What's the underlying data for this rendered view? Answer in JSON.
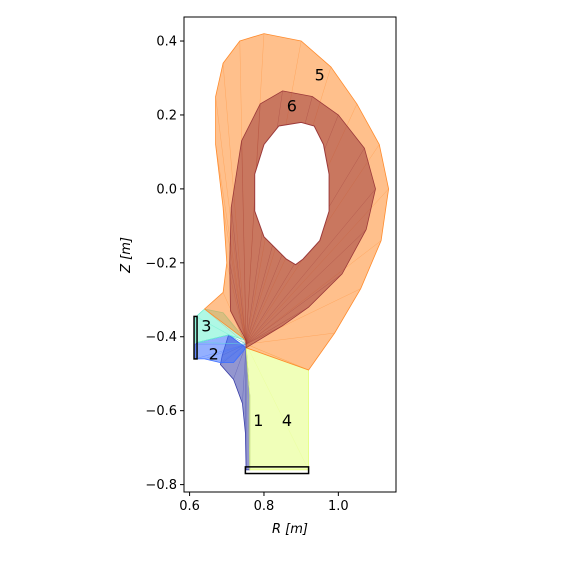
{
  "chart_data": {
    "type": "area",
    "title": "",
    "xlabel": "R [m]",
    "ylabel": "Z [m]",
    "xlim": [
      0.585,
      1.155
    ],
    "ylim": [
      -0.82,
      0.465
    ],
    "x_ticks": [
      0.6,
      0.8,
      1.0
    ],
    "x_tick_labels": [
      "0.6",
      "0.8",
      "1.0"
    ],
    "y_ticks": [
      0.4,
      0.2,
      0.0,
      -0.2,
      -0.4,
      -0.6,
      -0.8
    ],
    "y_tick_labels": [
      "0.4",
      "0.2",
      "0.0",
      "−0.2",
      "−0.4",
      "−0.6",
      "−0.8"
    ],
    "grid": false,
    "regions": [
      {
        "label": "1",
        "color": "#3a3fa8",
        "label_pos": [
          0.785,
          -0.625
        ],
        "outline": [
          [
            0.705,
            -0.395
          ],
          [
            0.752,
            -0.43
          ],
          [
            0.762,
            -0.56
          ],
          [
            0.762,
            -0.76
          ],
          [
            0.752,
            -0.76
          ],
          [
            0.75,
            -0.66
          ],
          [
            0.742,
            -0.58
          ],
          [
            0.718,
            -0.515
          ],
          [
            0.683,
            -0.475
          ],
          [
            0.688,
            -0.45
          ]
        ]
      },
      {
        "label": "2",
        "color": "#3d6fff",
        "label_pos": [
          0.665,
          -0.445
        ],
        "outline": [
          [
            0.623,
            -0.415
          ],
          [
            0.705,
            -0.395
          ],
          [
            0.752,
            -0.43
          ],
          [
            0.718,
            -0.47
          ],
          [
            0.683,
            -0.47
          ],
          [
            0.64,
            -0.46
          ],
          [
            0.615,
            -0.46
          ],
          [
            0.615,
            -0.42
          ]
        ]
      },
      {
        "label": "3",
        "color": "#6df2d0",
        "label_pos": [
          0.645,
          -0.37
        ],
        "outline": [
          [
            0.618,
            -0.345
          ],
          [
            0.64,
            -0.325
          ],
          [
            0.69,
            -0.335
          ],
          [
            0.752,
            -0.41
          ],
          [
            0.705,
            -0.395
          ],
          [
            0.623,
            -0.415
          ],
          [
            0.615,
            -0.415
          ],
          [
            0.615,
            -0.345
          ]
        ]
      },
      {
        "label": "4",
        "color": "#e4ff80",
        "label_pos": [
          0.862,
          -0.625
        ],
        "outline": [
          [
            0.752,
            -0.43
          ],
          [
            0.92,
            -0.49
          ],
          [
            0.92,
            -0.76
          ],
          [
            0.762,
            -0.76
          ],
          [
            0.762,
            -0.56
          ]
        ]
      },
      {
        "label": "5",
        "color": "#ff8c2e",
        "label_pos": [
          0.95,
          0.31
        ],
        "outline": [
          [
            0.64,
            -0.325
          ],
          [
            0.69,
            -0.28
          ],
          [
            0.7,
            -0.2
          ],
          [
            0.69,
            -0.05
          ],
          [
            0.67,
            0.12
          ],
          [
            0.67,
            0.25
          ],
          [
            0.69,
            0.34
          ],
          [
            0.735,
            0.4
          ],
          [
            0.8,
            0.42
          ],
          [
            0.9,
            0.4
          ],
          [
            0.98,
            0.33
          ],
          [
            1.05,
            0.23
          ],
          [
            1.11,
            0.12
          ],
          [
            1.135,
            0.0
          ],
          [
            1.115,
            -0.14
          ],
          [
            1.06,
            -0.27
          ],
          [
            0.99,
            -0.39
          ],
          [
            0.92,
            -0.49
          ],
          [
            0.752,
            -0.43
          ],
          [
            0.752,
            -0.41
          ]
        ]
      },
      {
        "label": "6",
        "color": "#9c3a3a",
        "label_pos": [
          0.875,
          0.225
        ],
        "outline": [
          [
            0.752,
            -0.41
          ],
          [
            0.71,
            -0.33
          ],
          [
            0.708,
            -0.2
          ],
          [
            0.712,
            -0.05
          ],
          [
            0.74,
            0.13
          ],
          [
            0.79,
            0.23
          ],
          [
            0.85,
            0.265
          ],
          [
            0.93,
            0.25
          ],
          [
            1.0,
            0.2
          ],
          [
            1.07,
            0.11
          ],
          [
            1.1,
            0.0
          ],
          [
            1.075,
            -0.11
          ],
          [
            1.01,
            -0.23
          ],
          [
            0.92,
            -0.32
          ],
          [
            0.85,
            -0.37
          ],
          [
            0.752,
            -0.43
          ]
        ]
      }
    ],
    "core_boundary": [
      [
        0.9,
        0.18
      ],
      [
        0.84,
        0.17
      ],
      [
        0.8,
        0.12
      ],
      [
        0.775,
        0.04
      ],
      [
        0.775,
        -0.06
      ],
      [
        0.8,
        -0.13
      ],
      [
        0.86,
        -0.19
      ],
      [
        0.885,
        -0.205
      ],
      [
        0.905,
        -0.19
      ],
      [
        0.95,
        -0.14
      ],
      [
        0.975,
        -0.06
      ],
      [
        0.975,
        0.04
      ],
      [
        0.96,
        0.12
      ],
      [
        0.935,
        0.17
      ]
    ],
    "x_point": [
      0.752,
      -0.42
    ],
    "targets": [
      {
        "name": "inner-target",
        "color": "#1a3fa8",
        "r": [
          0.612,
          0.62
        ],
        "z": [
          -0.345,
          -0.46
        ]
      },
      {
        "name": "outer-target",
        "color": "#2a2a8a",
        "r": [
          0.75,
          0.92
        ],
        "z": [
          -0.752,
          -0.77
        ]
      }
    ]
  }
}
